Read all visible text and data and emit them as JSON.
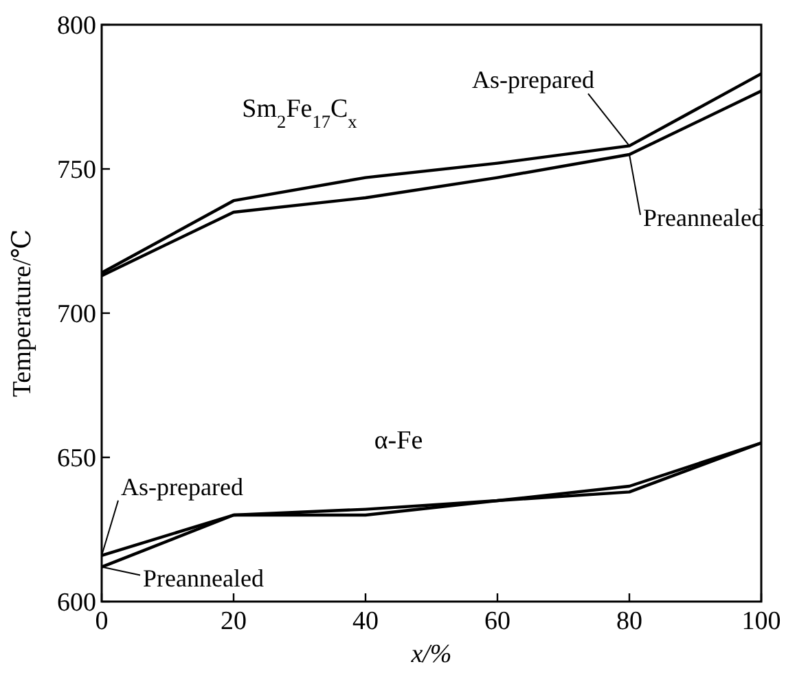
{
  "chart_data": {
    "type": "line",
    "xlabel": "x/%",
    "ylabel": "Temperature/℃",
    "x": [
      0,
      20,
      40,
      60,
      80,
      100
    ],
    "xlim": [
      0,
      100
    ],
    "xticks": [
      0,
      20,
      40,
      60,
      80,
      100
    ],
    "ylim": [
      600,
      800
    ],
    "yticks": [
      600,
      650,
      700,
      750,
      800
    ],
    "grid": false,
    "marker": "none",
    "line_style": "solid",
    "series": [
      {
        "name": "As-prepared",
        "color": "#000000",
        "values": [
          714,
          739,
          747,
          752,
          758,
          783
        ]
      },
      {
        "name": "Preannealed",
        "color": "#000000",
        "values": [
          713,
          735,
          740,
          747,
          755,
          777
        ]
      },
      {
        "name": "As-prepared",
        "color": "#000000",
        "values": [
          616,
          630,
          632,
          635,
          640,
          655
        ]
      },
      {
        "name": "Preannealed",
        "color": "#000000",
        "values": [
          612,
          630,
          630,
          635,
          638,
          655
        ]
      }
    ],
    "annotations": [
      "Sm$_{2}$Fe$_{17}$C$_{x}$",
      "α-Fe"
    ]
  }
}
